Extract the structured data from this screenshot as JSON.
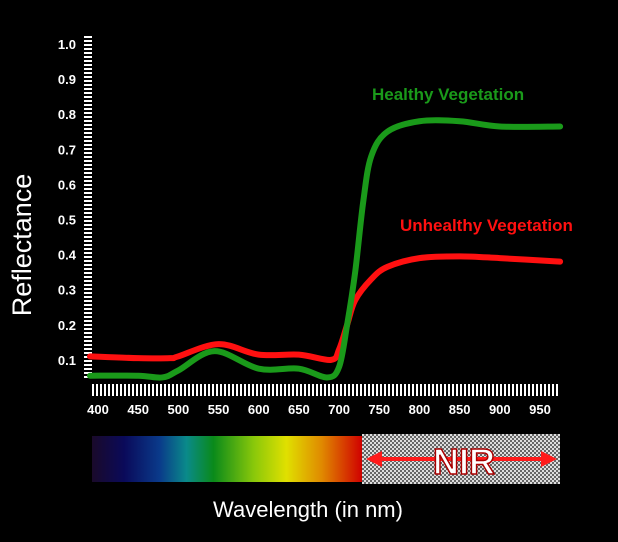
{
  "chart_data": {
    "type": "line",
    "title": "",
    "xlabel": "Wavelength (in nm)",
    "ylabel": "Reflectance",
    "xlim": [
      390,
      975
    ],
    "ylim": [
      0.05,
      1.0
    ],
    "x_ticks": [
      "400",
      "450",
      "500",
      "550",
      "600",
      "650",
      "700",
      "750",
      "800",
      "850",
      "900",
      "950"
    ],
    "y_ticks": [
      "0.1",
      "0.2",
      "0.3",
      "0.4",
      "0.5",
      "0.6",
      "0.7",
      "0.8",
      "0.9",
      "1.0"
    ],
    "grid": false,
    "series": [
      {
        "name": "Healthy Vegetation",
        "color": "#1a9a1a",
        "x": [
          390,
          450,
          480,
          500,
          545,
          600,
          650,
          685,
          700,
          710,
          720,
          730,
          740,
          760,
          800,
          850,
          900,
          975
        ],
        "y": [
          0.055,
          0.055,
          0.05,
          0.07,
          0.125,
          0.075,
          0.075,
          0.05,
          0.08,
          0.2,
          0.35,
          0.55,
          0.68,
          0.75,
          0.78,
          0.78,
          0.765,
          0.765
        ]
      },
      {
        "name": "Unhealthy Vegetation",
        "color": "#ff1010",
        "x": [
          390,
          450,
          490,
          500,
          550,
          600,
          650,
          690,
          700,
          710,
          720,
          740,
          760,
          800,
          850,
          900,
          975
        ],
        "y": [
          0.11,
          0.105,
          0.105,
          0.11,
          0.145,
          0.115,
          0.115,
          0.1,
          0.13,
          0.2,
          0.27,
          0.33,
          0.365,
          0.39,
          0.395,
          0.39,
          0.38
        ]
      }
    ],
    "annotations": [
      "Healthy Vegetation",
      "Unhealthy Vegetation"
    ],
    "spectrum_bar": {
      "visible_range_nm": [
        390,
        725
      ],
      "nir_label": "NIR"
    }
  }
}
